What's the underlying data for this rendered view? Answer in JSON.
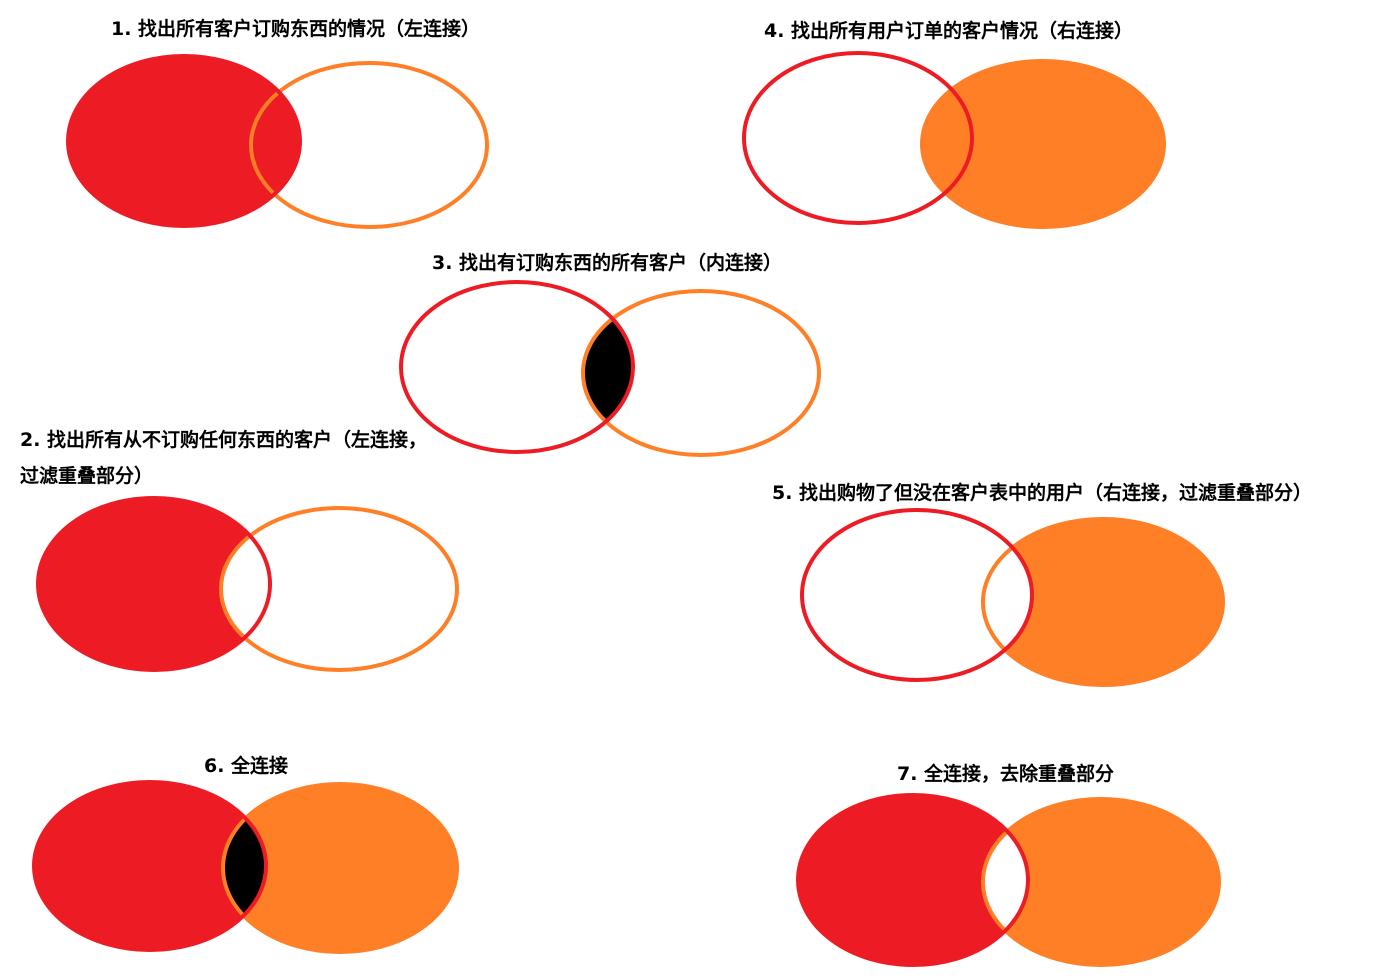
{
  "colors": {
    "red": "#ED1C24",
    "orange": "#FF7F27",
    "white": "#FFFFFF",
    "black": "#000000"
  },
  "captions": {
    "c1": "1. 找出所有客户订购东西的情况（左连接）",
    "c2": "2. 找出所有从不订购任何东西的客户（左连接，过滤重叠部分）",
    "c3": "3. 找出有订购东西的所有客户（内连接）",
    "c4": "4. 找出所有用户订单的客户情况（右连接）",
    "c5": "5. 找出购物了但没在客户表中的用户（右连接，过滤重叠部分）",
    "c6": "6. 全连接",
    "c7": "7. 全连接，去除重叠部分"
  },
  "diagrams": [
    {
      "id": "d1",
      "caption": "c1",
      "left": "filled",
      "right": "outline",
      "overlap": "left"
    },
    {
      "id": "d4",
      "caption": "c4",
      "left": "outline",
      "right": "filled",
      "overlap": "right"
    },
    {
      "id": "d3",
      "caption": "c3",
      "left": "outline",
      "right": "outline",
      "overlap": "black"
    },
    {
      "id": "d2",
      "caption": "c2",
      "left": "filled",
      "right": "outline",
      "overlap": "white"
    },
    {
      "id": "d5",
      "caption": "c5",
      "left": "outline",
      "right": "filled",
      "overlap": "white"
    },
    {
      "id": "d6",
      "caption": "c6",
      "left": "filled",
      "right": "filled",
      "overlap": "black"
    },
    {
      "id": "d7",
      "caption": "c7",
      "left": "filled",
      "right": "filled",
      "overlap": "white"
    }
  ]
}
